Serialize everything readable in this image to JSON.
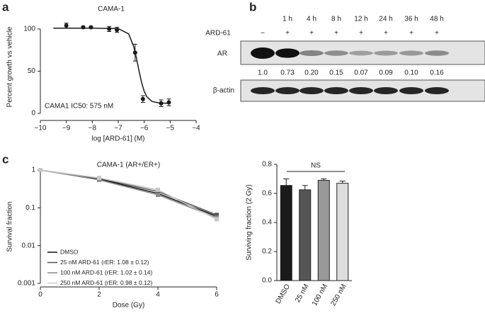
{
  "panel_labels": [
    "a",
    "b",
    "c"
  ],
  "chart_data": [
    {
      "type": "scatter",
      "title": "CAMA-1",
      "xlabel": "log [ARD-61] (M)",
      "ylabel": "Percent growth vs vehicle",
      "annotation": "CAMA1 IC50: 575 nM",
      "color": "#1a1a1a",
      "x": [
        -9,
        -8.35,
        -8.05,
        -7.35,
        -7.05,
        -6.35,
        -6.05,
        -5.35,
        -5.05
      ],
      "values": [
        104,
        102,
        102,
        100,
        99,
        72,
        17,
        12,
        13
      ],
      "errors": [
        3,
        1,
        1,
        3,
        3,
        10,
        4,
        4,
        4
      ],
      "fit": {
        "x": [
          -9.5,
          -8,
          -7,
          -6.6,
          -6.4,
          -6.3,
          -6.2,
          -6.1,
          -6.0,
          -5.9,
          -5.7,
          -5.4,
          -5
        ],
        "y": [
          101,
          101,
          100.5,
          94.2,
          78.9,
          65.6,
          50.4,
          36.5,
          26.2,
          19.7,
          14.1,
          12.2,
          12
        ]
      },
      "xlim": [
        -10,
        -4
      ],
      "ylim": [
        0,
        110
      ],
      "xticks": [
        {
          "value": -10,
          "label": "−10"
        },
        {
          "value": -9,
          "label": "−9"
        },
        {
          "value": -8,
          "label": "−8"
        },
        {
          "value": -7,
          "label": "−7"
        },
        {
          "value": -6,
          "label": "−6"
        },
        {
          "value": -5,
          "label": "−5"
        },
        {
          "value": -4,
          "label": "−4"
        }
      ],
      "yticks": [
        0,
        50,
        100
      ]
    },
    {
      "type": "line",
      "title": "CAMA-1 (AR+/ER+)",
      "xlabel": "Dose (Gy)",
      "ylabel": "Survival fraction",
      "log_y": true,
      "legend": "lower left",
      "x": [
        0,
        2,
        4,
        6
      ],
      "series": [
        {
          "name": "DMSO",
          "color": "#111111",
          "values": [
            1,
            0.58,
            0.24,
            0.06
          ]
        },
        {
          "name": "25 nM ARD-61 (rER: 1.08 ± 0.12)",
          "color": "#555555",
          "values": [
            1,
            0.6,
            0.27,
            0.065
          ]
        },
        {
          "name": "100 nM ARD-61 (rER: 1.02 ± 0.14)",
          "color": "#8a8a8a",
          "values": [
            1,
            0.55,
            0.22,
            0.055
          ]
        },
        {
          "name": "250 nM ARD-61 (rER: 0.98 ± 0.12)",
          "color": "#c8c8c8",
          "values": [
            1,
            0.62,
            0.3,
            0.05
          ]
        }
      ],
      "xlim": [
        0,
        6
      ],
      "ylim": [
        0.001,
        1
      ],
      "xticks": [
        0,
        2,
        4,
        6
      ],
      "yticks": [
        1,
        0.1,
        0.01,
        0.001
      ]
    },
    {
      "type": "bar",
      "ylabel": "Surviving fraction (2 Gy)",
      "annotation": "NS",
      "categories": [
        "DMSO",
        "25 nM",
        "100 nM",
        "250 nM"
      ],
      "values": [
        0.655,
        0.625,
        0.69,
        0.67
      ],
      "errors": [
        0.045,
        0.03,
        0.01,
        0.015
      ],
      "colors": [
        "#1a1a1a",
        "#555555",
        "#999999",
        "#dddddd"
      ],
      "ylim": [
        0,
        0.8
      ],
      "yticks": [
        {
          "value": 0,
          "label": "0.0"
        },
        0.2,
        0.4,
        0.6,
        0.8
      ]
    }
  ],
  "blot": {
    "times": [
      "1 h",
      "4 h",
      "8 h",
      "12 h",
      "24 h",
      "36 h",
      "48 h"
    ],
    "treatment": "ARD-61",
    "treatment_marks": [
      "−",
      "+",
      "+",
      "+",
      "+",
      "+",
      "+",
      "+"
    ],
    "target": "AR",
    "quantification": [
      "1.0",
      "0.73",
      "0.20",
      "0.15",
      "0.07",
      "0.09",
      "0.10",
      "0.16"
    ],
    "loading": "β-actin"
  }
}
